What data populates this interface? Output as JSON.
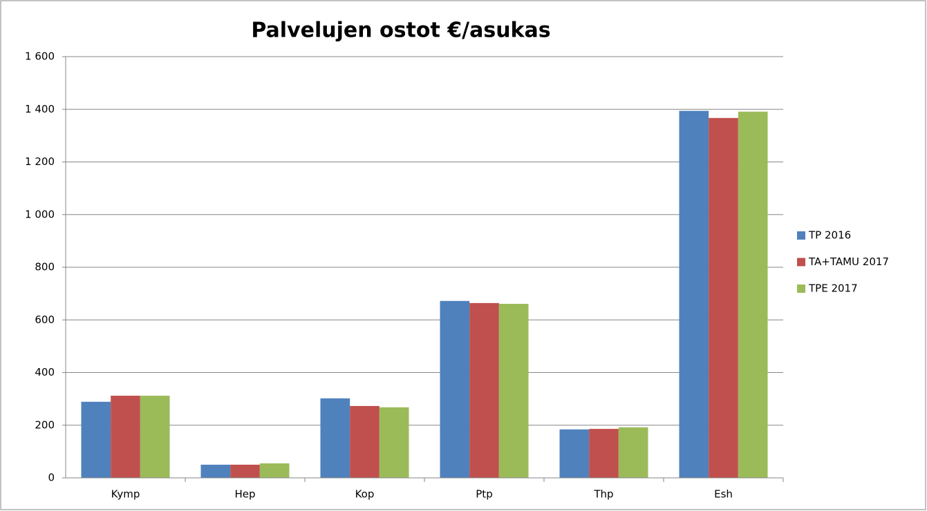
{
  "chart_data": {
    "type": "bar",
    "title": "Palvelujen ostot €/asukas",
    "categories": [
      "Kymp",
      "Hep",
      "Kop",
      "Ptp",
      "Thp",
      "Esh"
    ],
    "series": [
      {
        "name": "TP 2016",
        "color": "#4f81bd",
        "values": [
          289,
          50,
          302,
          672,
          184,
          1394
        ]
      },
      {
        "name": "TA+TAMU  2017",
        "color": "#c0504d",
        "values": [
          312,
          50,
          273,
          664,
          186,
          1367
        ]
      },
      {
        "name": "TPE 2017",
        "color": "#9bbb59",
        "values": [
          312,
          55,
          268,
          661,
          192,
          1391
        ]
      }
    ],
    "ylim": [
      0,
      1600
    ],
    "yticks": [
      0,
      200,
      400,
      600,
      800,
      {
        "value": 1000,
        "label": "1 000"
      },
      {
        "value": 1200,
        "label": "1 200"
      },
      {
        "value": 1400,
        "label": "1 400"
      },
      {
        "value": 1600,
        "label": "1 600"
      }
    ],
    "grid": true,
    "legend": "right"
  }
}
